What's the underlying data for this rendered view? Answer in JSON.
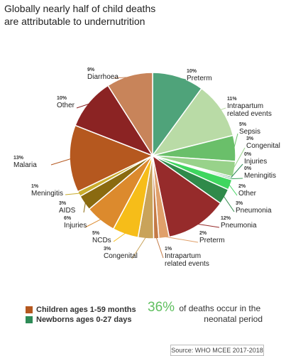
{
  "title_lines": [
    "Globally nearly half of child deaths",
    "are attributable to undernutrition"
  ],
  "legend": [
    {
      "label": "Children ages 1-59 months",
      "color": "#b5581f"
    },
    {
      "label": "Newborns ages 0-27 days",
      "color": "#2e8b57"
    }
  ],
  "stat": {
    "percent": "36%",
    "line1": "of deaths occur in the",
    "line2": "neonatal period"
  },
  "source": "Source: WHO MCEE 2017-2018",
  "chart_data": {
    "type": "pie",
    "unit": "%",
    "slices": [
      {
        "pct": "10%",
        "value": 10,
        "lines": [
          "Preterm"
        ],
        "color": "#4fa37a",
        "group": "Newborns ages 0-27 days"
      },
      {
        "pct": "11%",
        "value": 11,
        "lines": [
          "Intrapartum",
          "related events"
        ],
        "color": "#b9dba6",
        "group": "Newborns ages 0-27 days"
      },
      {
        "pct": "5%",
        "value": 5,
        "lines": [
          "Sepsis"
        ],
        "color": "#6abf6a",
        "group": "Newborns ages 0-27 days"
      },
      {
        "pct": "3%",
        "value": 3,
        "lines": [
          "Congenital"
        ],
        "color": "#98d28a",
        "group": "Newborns ages 0-27 days"
      },
      {
        "pct": "0%",
        "value": 0.3,
        "lines": [
          "Injuries"
        ],
        "color": "#2e8b57",
        "group": "Newborns ages 0-27 days"
      },
      {
        "pct": "0%",
        "value": 0.3,
        "lines": [
          "Meningitis"
        ],
        "color": "#3aa05a",
        "group": "Newborns ages 0-27 days"
      },
      {
        "pct": "2%",
        "value": 2,
        "lines": [
          "Other"
        ],
        "color": "#3fd65f",
        "group": "Newborns ages 0-27 days"
      },
      {
        "pct": "3%",
        "value": 3,
        "lines": [
          "Pneumonia"
        ],
        "color": "#2f8a4a",
        "group": "Newborns ages 0-27 days"
      },
      {
        "pct": "12%",
        "value": 12,
        "lines": [
          "Pneumonia"
        ],
        "color": "#962b2b",
        "group": "Children ages 1-59 months"
      },
      {
        "pct": "2%",
        "value": 2,
        "lines": [
          "Preterm"
        ],
        "color": "#e0a06a",
        "group": "Children ages 1-59 months"
      },
      {
        "pct": "1%",
        "value": 1,
        "lines": [
          "Intrapartum",
          "related events"
        ],
        "color": "#c47a45",
        "group": "Children ages 1-59 months"
      },
      {
        "pct": "3%",
        "value": 3,
        "lines": [
          "Congenital"
        ],
        "color": "#c9a35a",
        "group": "Children ages 1-59 months"
      },
      {
        "pct": "5%",
        "value": 5,
        "lines": [
          "NCDs"
        ],
        "color": "#f6bd19",
        "group": "Children ages 1-59 months"
      },
      {
        "pct": "6%",
        "value": 6,
        "lines": [
          "Injuries"
        ],
        "color": "#dc8a2d",
        "group": "Children ages 1-59 months"
      },
      {
        "pct": "3%",
        "value": 3,
        "lines": [
          "AIDS"
        ],
        "color": "#8a6a10",
        "group": "Children ages 1-59 months"
      },
      {
        "pct": "1%",
        "value": 1,
        "lines": [
          "Meningitis"
        ],
        "color": "#c9ac2c",
        "group": "Children ages 1-59 months"
      },
      {
        "pct": "13%",
        "value": 13,
        "lines": [
          "Malaria"
        ],
        "color": "#b5581f",
        "group": "Children ages 1-59 months"
      },
      {
        "pct": "10%",
        "value": 10,
        "lines": [
          "Other"
        ],
        "color": "#8b2323",
        "group": "Children ages 1-59 months"
      },
      {
        "pct": "9%",
        "value": 9,
        "lines": [
          "Diarrhoea"
        ],
        "color": "#c8845a",
        "group": "Children ages 1-59 months"
      }
    ]
  }
}
